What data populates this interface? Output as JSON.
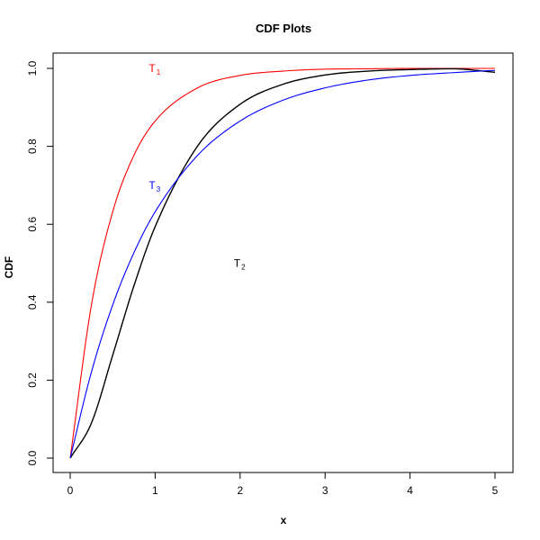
{
  "chart_data": {
    "type": "line",
    "title": "CDF Plots",
    "xlabel": "x",
    "ylabel": "CDF",
    "xlim": [
      0,
      5
    ],
    "ylim": [
      0,
      1
    ],
    "x_ticks": [
      "0",
      "1",
      "2",
      "3",
      "4",
      "5"
    ],
    "y_ticks": [
      "0.0",
      "0.2",
      "0.4",
      "0.6",
      "0.8",
      "1.0"
    ],
    "grid": false,
    "legend": "none",
    "x": [
      0,
      0.25,
      0.5,
      0.75,
      1.0,
      1.5,
      2.0,
      2.5,
      3.0,
      3.5,
      4.0,
      4.5,
      5.0
    ],
    "series": [
      {
        "label_main": "T",
        "label_sub": "1",
        "label_pos": [
          1.0,
          1.0
        ],
        "color": "#ff0000",
        "values": [
          0,
          0.393,
          0.632,
          0.777,
          0.865,
          0.95,
          0.982,
          0.993,
          0.998,
          0.999,
          1.0,
          1.0,
          1.0
        ]
      },
      {
        "label_main": "T",
        "label_sub": "2",
        "label_pos": [
          2.0,
          0.5
        ],
        "color": "#000000",
        "values": [
          0,
          0.09,
          0.264,
          0.442,
          0.594,
          0.801,
          0.908,
          0.959,
          0.983,
          0.993,
          0.997,
          0.999,
          0.99
        ]
      },
      {
        "label_main": "T",
        "label_sub": "3",
        "label_pos": [
          1.0,
          0.7
        ],
        "color": "#0000ff",
        "values": [
          0,
          0.221,
          0.393,
          0.527,
          0.632,
          0.777,
          0.865,
          0.918,
          0.95,
          0.97,
          0.982,
          0.989,
          0.995
        ]
      }
    ]
  }
}
